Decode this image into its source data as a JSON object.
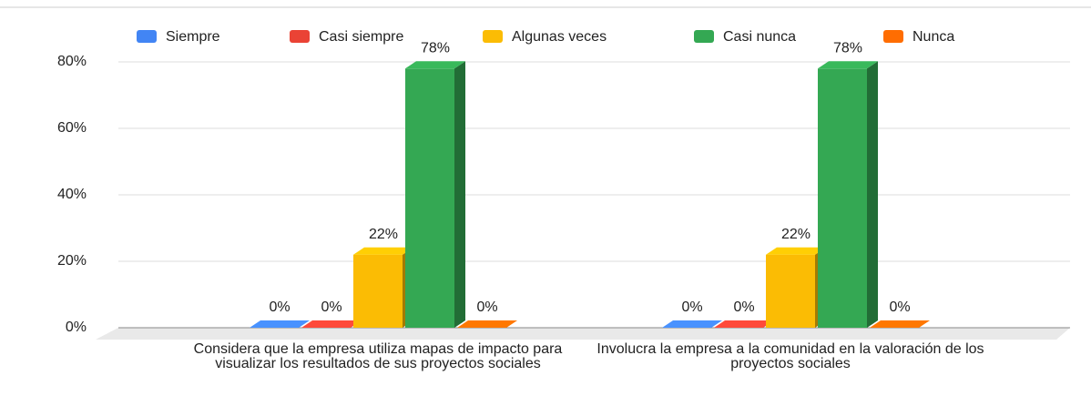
{
  "chart_data": {
    "type": "bar3d",
    "categories": [
      "Considera que la empresa utiliza mapas de impacto para visualizar los resultados de sus proyectos sociales",
      "Involucra la empresa a la comunidad en la valoración de los proyectos sociales"
    ],
    "series": [
      {
        "name": "Siempre",
        "color": "#4285f4",
        "values": [
          0,
          0
        ],
        "value_labels": [
          "0%",
          "0%"
        ]
      },
      {
        "name": "Casi siempre",
        "color": "#ea4335",
        "values": [
          0,
          0
        ],
        "value_labels": [
          "0%",
          "0%"
        ]
      },
      {
        "name": "Algunas veces",
        "color": "#fbbc04",
        "values": [
          22,
          22
        ],
        "value_labels": [
          "22%",
          "22%"
        ]
      },
      {
        "name": "Casi nunca",
        "color": "#34a853",
        "values": [
          78,
          78
        ],
        "value_labels": [
          "78%",
          "78%"
        ]
      },
      {
        "name": "Nunca",
        "color": "#ff6d01",
        "values": [
          0,
          0
        ],
        "value_labels": [
          "0%",
          "0%"
        ]
      }
    ],
    "ylim": [
      0,
      80
    ],
    "yticks": [
      {
        "value": 0,
        "label": "0%"
      },
      {
        "value": 20,
        "label": "20%"
      },
      {
        "value": 40,
        "label": "40%"
      },
      {
        "value": 60,
        "label": "60%"
      },
      {
        "value": 80,
        "label": "80%"
      }
    ],
    "grid": true,
    "legend": "top"
  }
}
